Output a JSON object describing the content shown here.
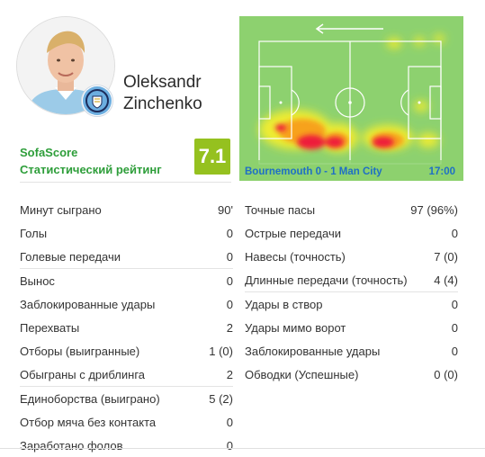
{
  "player": {
    "first_name": "Oleksandr",
    "last_name": "Zinchenko"
  },
  "rating": {
    "brand": "SofaScore",
    "subtitle": "Статистический рейтинг",
    "value": "7.1",
    "color": "#95c11f"
  },
  "heatmap": {
    "match": "Bournemouth 0 - 1 Man City",
    "time": "17:00",
    "direction_icon": "arrow-left-icon",
    "pitch_color": "#8dd16f",
    "line_color": "#ffffff"
  },
  "stats_left": [
    [
      {
        "label": "Минут сыграно",
        "value": "90'"
      },
      {
        "label": "Голы",
        "value": "0"
      },
      {
        "label": "Голевые передачи",
        "value": "0"
      }
    ],
    [
      {
        "label": "Вынос",
        "value": "0"
      },
      {
        "label": "Заблокированные удары",
        "value": "0"
      },
      {
        "label": "Перехваты",
        "value": "2"
      },
      {
        "label": "Отборы (выигранные)",
        "value": "1 (0)"
      },
      {
        "label": "Обыграны с дриблинга",
        "value": "2"
      }
    ],
    [
      {
        "label": "Единоборства (выиграно)",
        "value": "5 (2)"
      },
      {
        "label": "Отбор мяча без контакта",
        "value": "0"
      },
      {
        "label": "Заработано фолов",
        "value": "0"
      }
    ]
  ],
  "stats_right": [
    [
      {
        "label": "Точные пасы",
        "value": "97 (96%)"
      },
      {
        "label": "Острые передачи",
        "value": "0"
      },
      {
        "label": "Навесы (точность)",
        "value": "7 (0)"
      },
      {
        "label": "Длинные передачи (точность)",
        "value": "4 (4)"
      }
    ],
    [
      {
        "label": "Удары в створ",
        "value": "0"
      },
      {
        "label": "Удары мимо ворот",
        "value": "0"
      },
      {
        "label": "Заблокированные удары",
        "value": "0"
      },
      {
        "label": "Обводки (Успешные)",
        "value": "0 (0)"
      }
    ]
  ]
}
